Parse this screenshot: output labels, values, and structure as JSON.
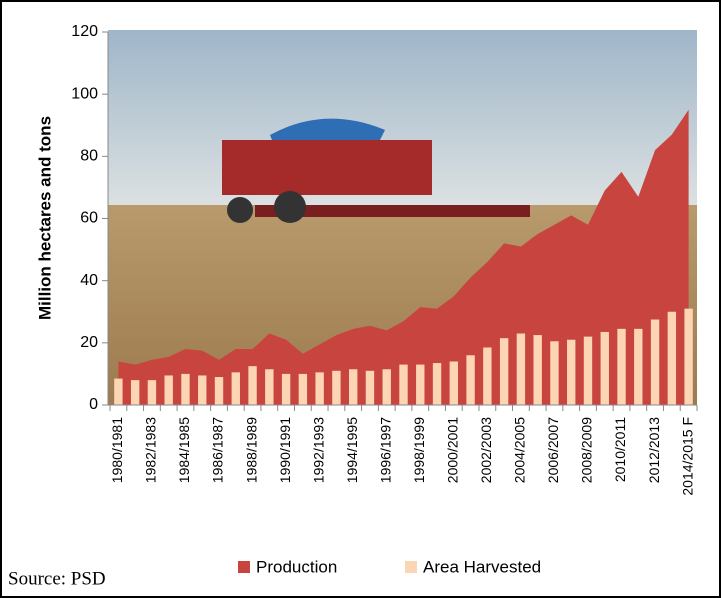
{
  "chart_data": {
    "type": "area_bar",
    "ylabel": "Million hectares and tons",
    "source": "Source: PSD",
    "categories": [
      "1980/1981",
      null,
      "1982/1983",
      null,
      "1984/1985",
      null,
      "1986/1987",
      null,
      "1988/1989",
      null,
      "1990/1991",
      null,
      "1992/1993",
      null,
      "1994/1995",
      null,
      "1996/1997",
      null,
      "1998/1999",
      null,
      "2000/2001",
      null,
      "2002/2003",
      null,
      "2004/2005",
      null,
      "2006/2007",
      null,
      "2008/2009",
      null,
      "2010/2011",
      null,
      "2012/2013",
      null,
      "2014/2015 F"
    ],
    "series": [
      {
        "name": "Production",
        "color": "#c8453f",
        "values": [
          14,
          13,
          14.5,
          15.5,
          18,
          17.5,
          14.5,
          18,
          18,
          23,
          21,
          16.5,
          19.5,
          22.5,
          24.5,
          25.5,
          24,
          27,
          31.5,
          31,
          35,
          41,
          46,
          52,
          51,
          55,
          58,
          61,
          58,
          69,
          75,
          67,
          82,
          87,
          95
        ]
      },
      {
        "name": "Area Harvested",
        "color": "#fcd5b5",
        "values": [
          8.5,
          8,
          8,
          9.5,
          10,
          9.5,
          9,
          10.5,
          12.5,
          11.5,
          10,
          10,
          10.5,
          11,
          11.5,
          11,
          11.5,
          13,
          13,
          13.5,
          14,
          16,
          18.5,
          21.5,
          23,
          22.5,
          20.5,
          21,
          22,
          23.5,
          24.5,
          24.5,
          27.5,
          30,
          31
        ]
      }
    ],
    "ylim": [
      0,
      120
    ],
    "yticks": [
      0,
      20,
      40,
      60,
      80,
      100,
      120
    ]
  }
}
